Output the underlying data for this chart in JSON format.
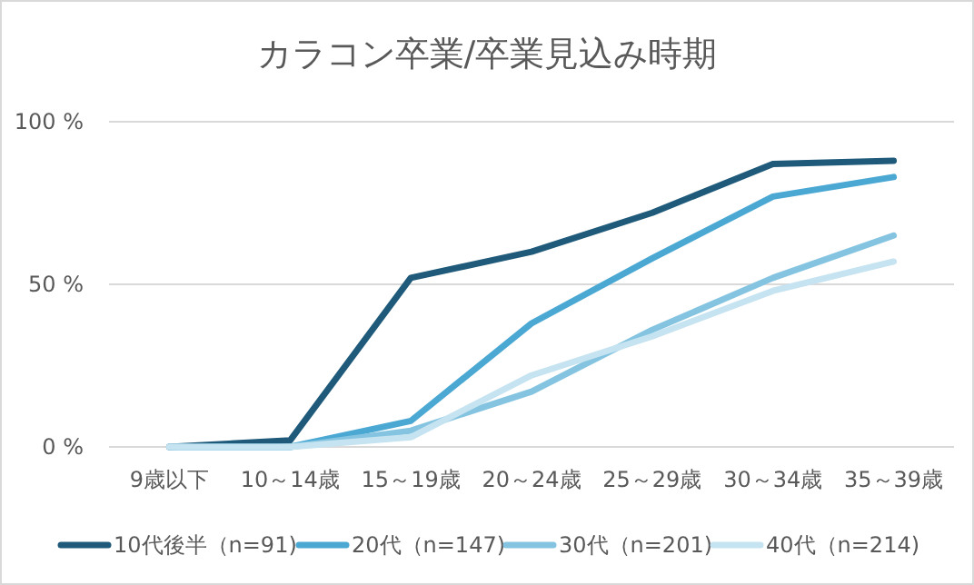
{
  "chart_data": {
    "type": "line",
    "title": "カラコン卒業/卒業見込み時期",
    "categories": [
      "9歳以下",
      "10～14歳",
      "15～19歳",
      "20～24歳",
      "25～29歳",
      "30～34歳",
      "35～39歳"
    ],
    "series": [
      {
        "name": "10代後半（n=91)",
        "color": "#1f5a7a",
        "values": [
          0,
          2,
          52,
          60,
          72,
          87,
          88
        ]
      },
      {
        "name": "20代（n=147)",
        "color": "#4aa8d3",
        "values": [
          0,
          0,
          8,
          38,
          58,
          77,
          83
        ]
      },
      {
        "name": "30代（n=201)",
        "color": "#85c4e0",
        "values": [
          0,
          0,
          5,
          17,
          36,
          52,
          65
        ]
      },
      {
        "name": "40代（n=214)",
        "color": "#c5e3f0",
        "values": [
          0,
          0,
          3,
          22,
          34,
          48,
          57
        ]
      }
    ],
    "ylim": [
      0,
      100
    ],
    "yticks": [
      {
        "value": 0,
        "label": "0 %"
      },
      {
        "value": 50,
        "label": "50 %"
      },
      {
        "value": 100,
        "label": "100 %"
      }
    ],
    "grid": "y",
    "legend": "bottom",
    "marker": "none",
    "line_style": "solid"
  }
}
